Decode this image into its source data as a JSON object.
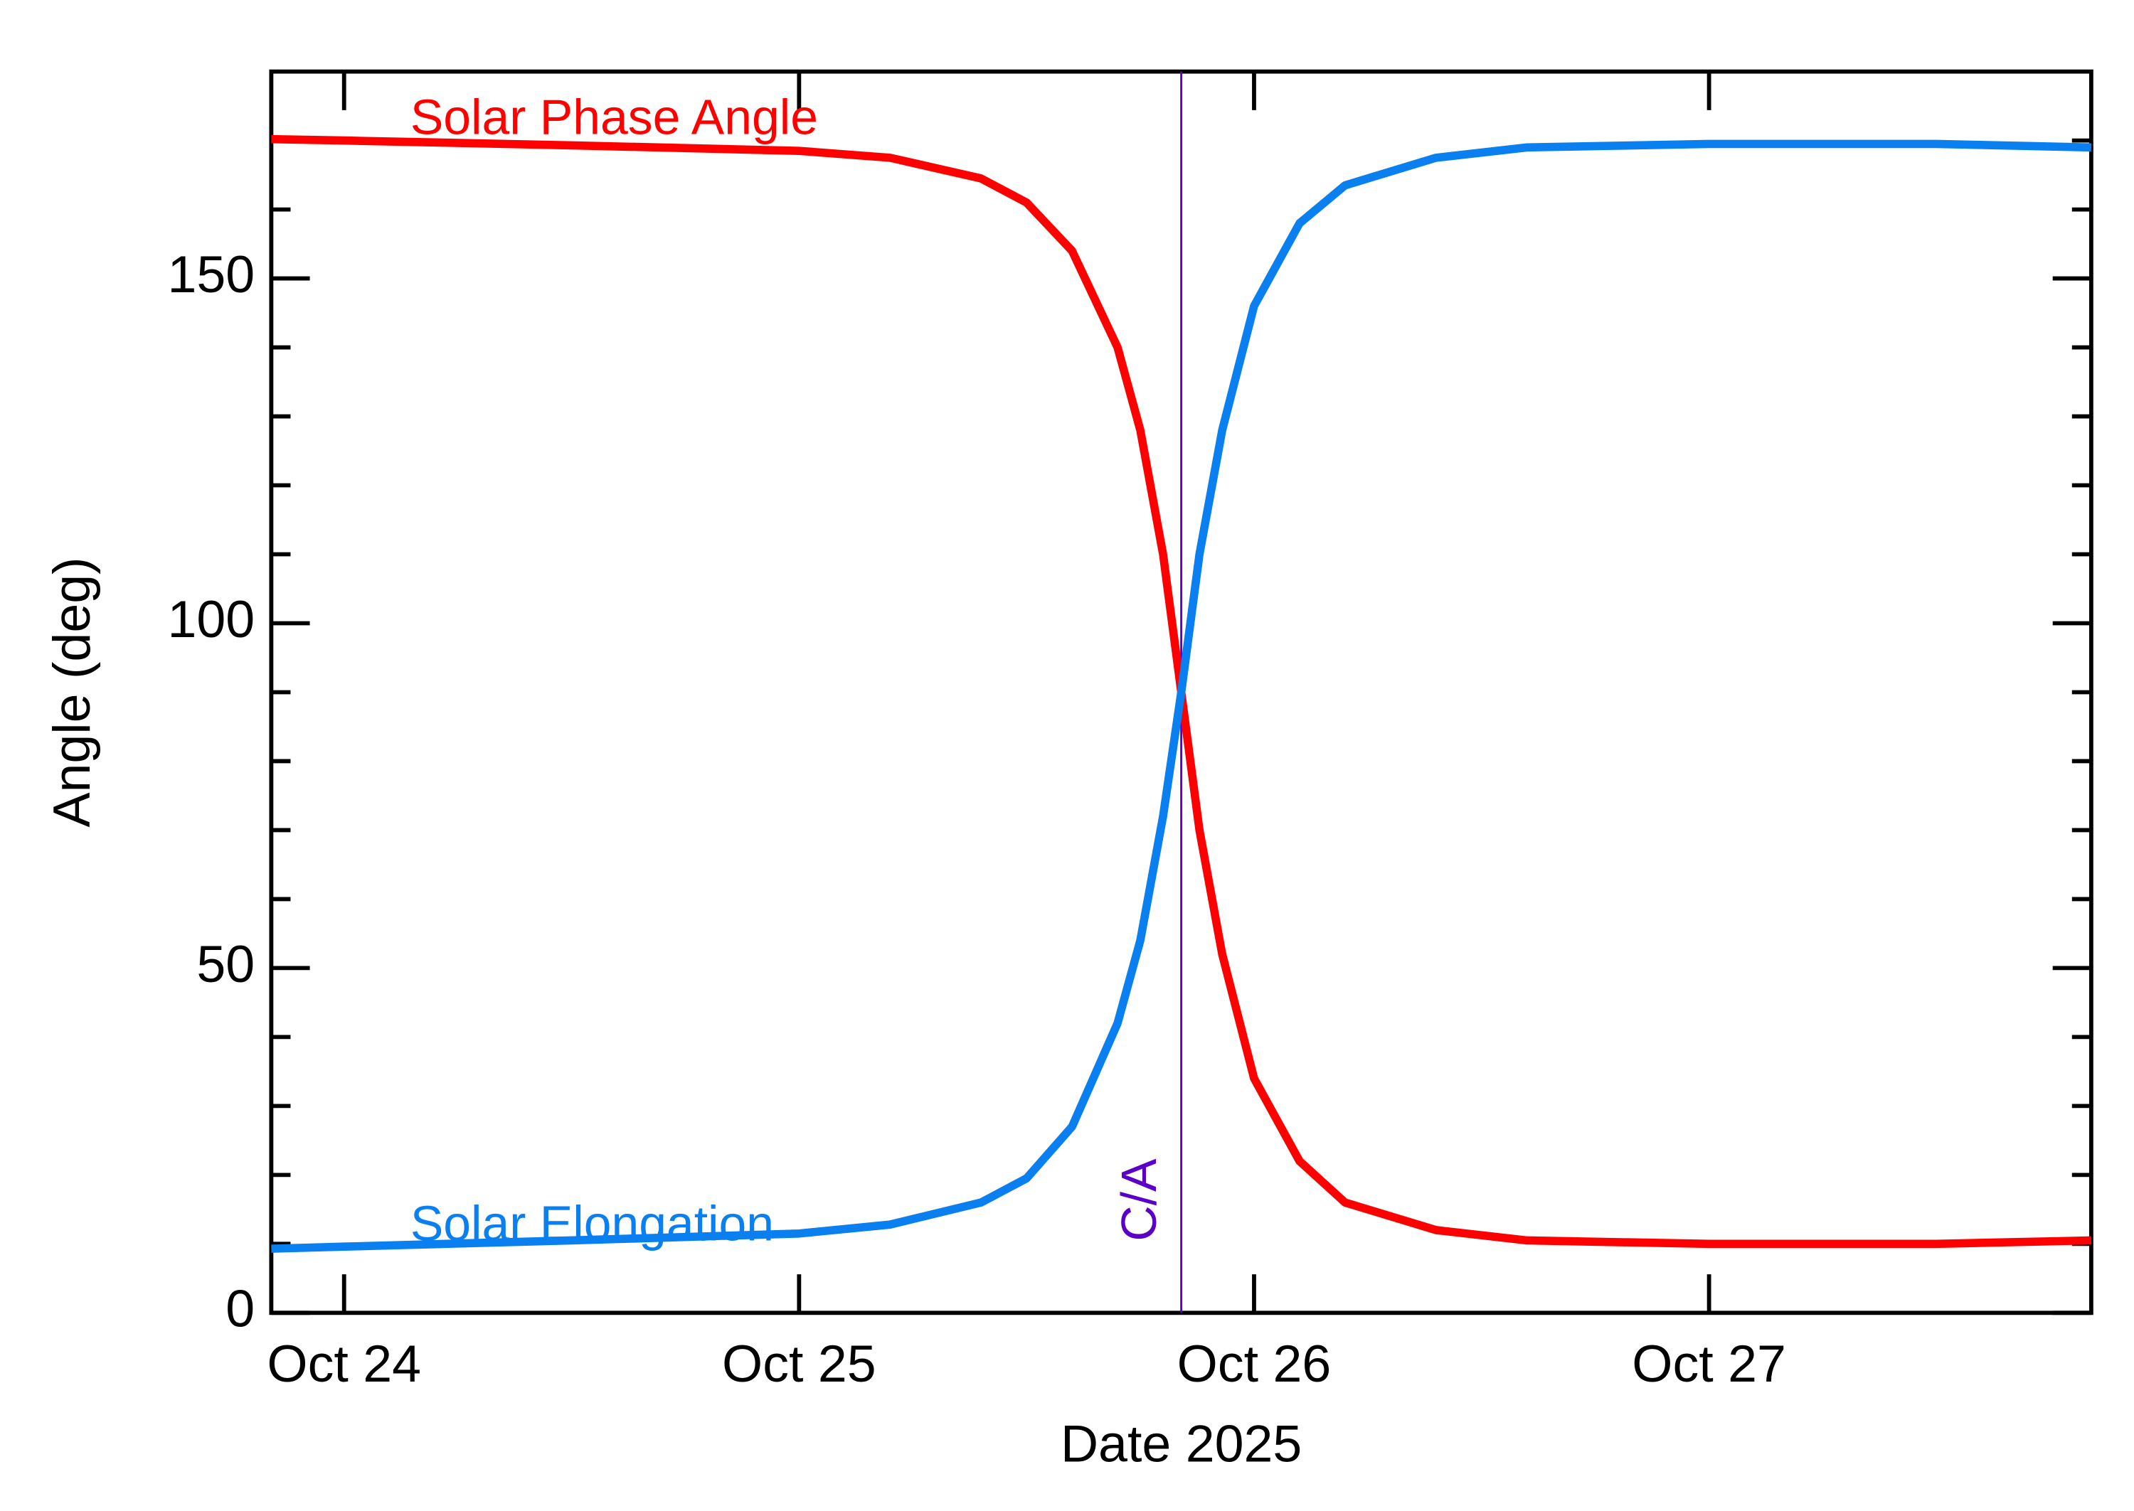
{
  "chart_data": {
    "type": "line",
    "x_label": "Date 2025",
    "y_label": "Angle (deg)",
    "x": [
      23.84,
      24.0,
      24.5,
      25.0,
      25.2,
      25.4,
      25.5,
      25.6,
      25.7,
      25.75,
      25.8,
      25.84,
      25.88,
      25.93,
      26.0,
      26.1,
      26.2,
      26.4,
      26.6,
      27.0,
      27.5,
      27.84
    ],
    "series": [
      {
        "name": "Solar Phase Angle",
        "color": "#ff0000",
        "values": [
          170.2,
          170,
          169.3,
          168.5,
          167.5,
          164.5,
          161,
          154,
          140,
          128,
          110,
          90,
          70,
          52,
          34,
          22,
          16,
          12,
          10.5,
          10,
          10,
          10.5
        ]
      },
      {
        "name": "Solar Elongation",
        "color": "#0a7ff0",
        "values": [
          9.3,
          9.6,
          10.5,
          11.5,
          12.8,
          16,
          19.5,
          27,
          42,
          54,
          72,
          90,
          110,
          128,
          146,
          158,
          163.5,
          167.5,
          169,
          169.5,
          169.5,
          169
        ]
      }
    ],
    "xlim": [
      23.84,
      27.84
    ],
    "xticks": [
      {
        "value": 24,
        "label": "Oct 24"
      },
      {
        "value": 25,
        "label": "Oct 25"
      },
      {
        "value": 26,
        "label": "Oct 26"
      },
      {
        "value": 27,
        "label": "Oct 27"
      }
    ],
    "ylim": [
      0,
      180
    ],
    "yticks": [
      0,
      50,
      100,
      150
    ],
    "yminorticks": [
      10,
      20,
      30,
      40,
      60,
      70,
      80,
      90,
      110,
      120,
      130,
      140,
      160,
      170
    ],
    "annotation": {
      "x": 25.84,
      "label": "C/A",
      "color": "#5a00c8"
    }
  }
}
